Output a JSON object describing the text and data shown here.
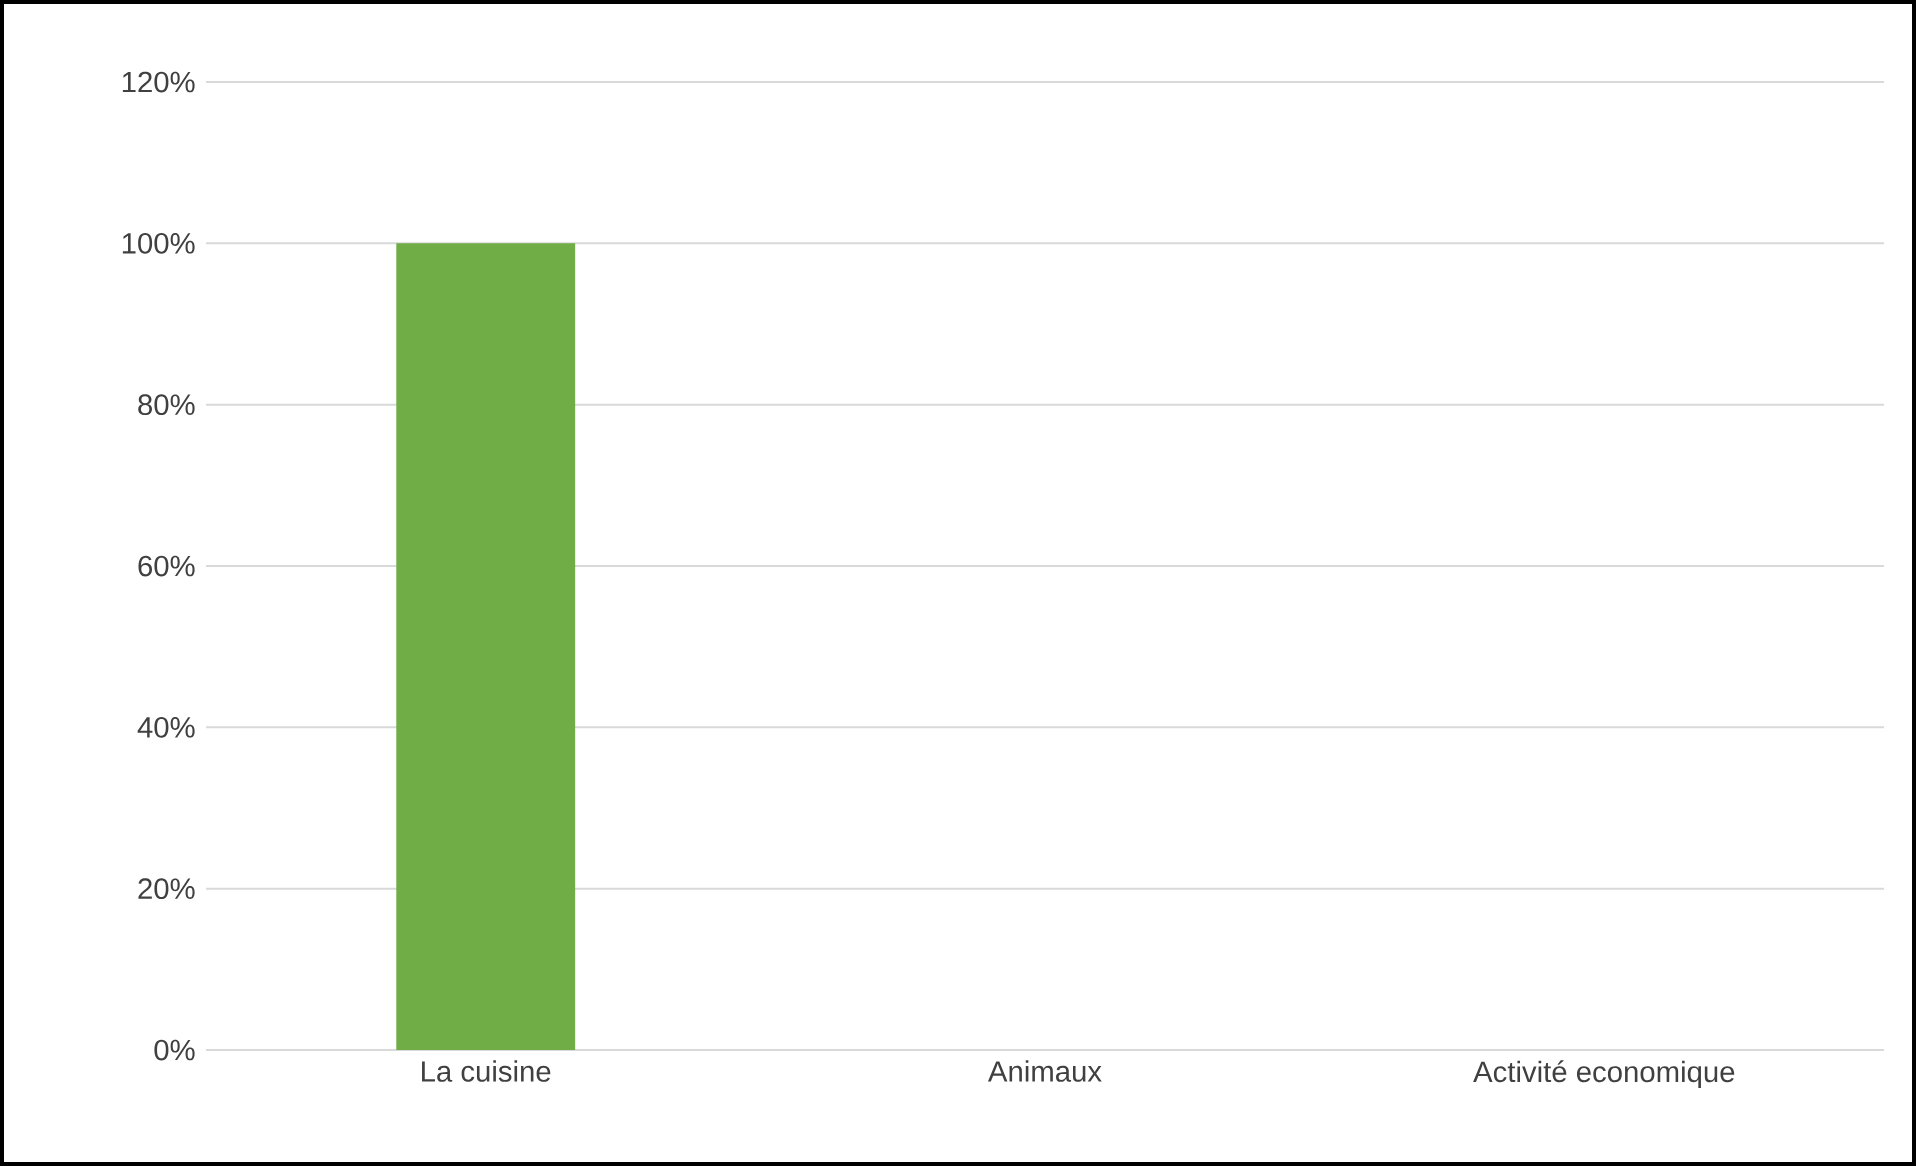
{
  "chart_data": {
    "type": "bar",
    "categories": [
      "La cuisine",
      "Animaux",
      "Activité economique"
    ],
    "values": [
      100,
      0,
      0
    ],
    "color": "#70ad47",
    "ylim": [
      0,
      120
    ],
    "yticks": [
      {
        "value": 0,
        "label": "0%"
      },
      {
        "value": 20,
        "label": "20%"
      },
      {
        "value": 40,
        "label": "40%"
      },
      {
        "value": 60,
        "label": "60%"
      },
      {
        "value": 80,
        "label": "80%"
      },
      {
        "value": 100,
        "label": "100%"
      },
      {
        "value": 120,
        "label": "120%"
      }
    ],
    "grid": "y"
  }
}
